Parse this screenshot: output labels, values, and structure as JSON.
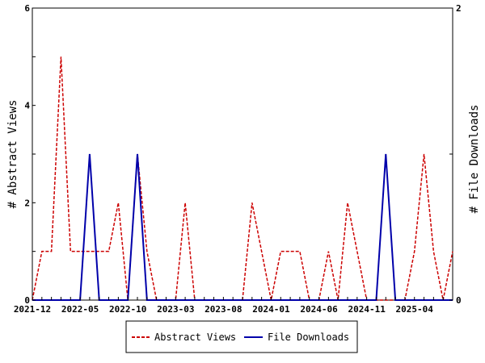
{
  "chart_data": {
    "type": "line",
    "x_tick_labels": [
      "2021-12",
      "2022-05",
      "2022-10",
      "2023-03",
      "2023-08",
      "2024-01",
      "2024-06",
      "2024-11",
      "2025-04"
    ],
    "x_month_count": 45,
    "left_axis": {
      "label": "# Abstract Views",
      "ylim": [
        0,
        6
      ],
      "ticks": [
        "0",
        "2",
        "4",
        "6"
      ]
    },
    "right_axis": {
      "label": "# File Downloads",
      "ylim": [
        0,
        2
      ],
      "ticks": [
        "0",
        "2"
      ]
    },
    "series": [
      {
        "name": "Abstract Views",
        "axis": "left",
        "color": "#cc0000",
        "dash": "dashed",
        "values": [
          0,
          1,
          1,
          5,
          1,
          1,
          1,
          1,
          1,
          2,
          0,
          3,
          1,
          0,
          0,
          0,
          2,
          0,
          0,
          0,
          0,
          0,
          0,
          2,
          1,
          0,
          1,
          1,
          1,
          0,
          0,
          1,
          0,
          2,
          1,
          0,
          0,
          0,
          0,
          0,
          1,
          3,
          1,
          0,
          1
        ]
      },
      {
        "name": "File Downloads",
        "axis": "right",
        "color": "#0000aa",
        "dash": "solid",
        "values": [
          0,
          0,
          0,
          0,
          0,
          0,
          1,
          0,
          0,
          0,
          0,
          1,
          0,
          0,
          0,
          0,
          0,
          0,
          0,
          0,
          0,
          0,
          0,
          0,
          0,
          0,
          0,
          0,
          0,
          0,
          0,
          0,
          0,
          0,
          0,
          0,
          0,
          1,
          0,
          0,
          0,
          0,
          0,
          0,
          0
        ]
      }
    ],
    "legend": {
      "position": "bottom",
      "items": [
        "Abstract Views",
        "File Downloads"
      ]
    },
    "grid": false
  }
}
